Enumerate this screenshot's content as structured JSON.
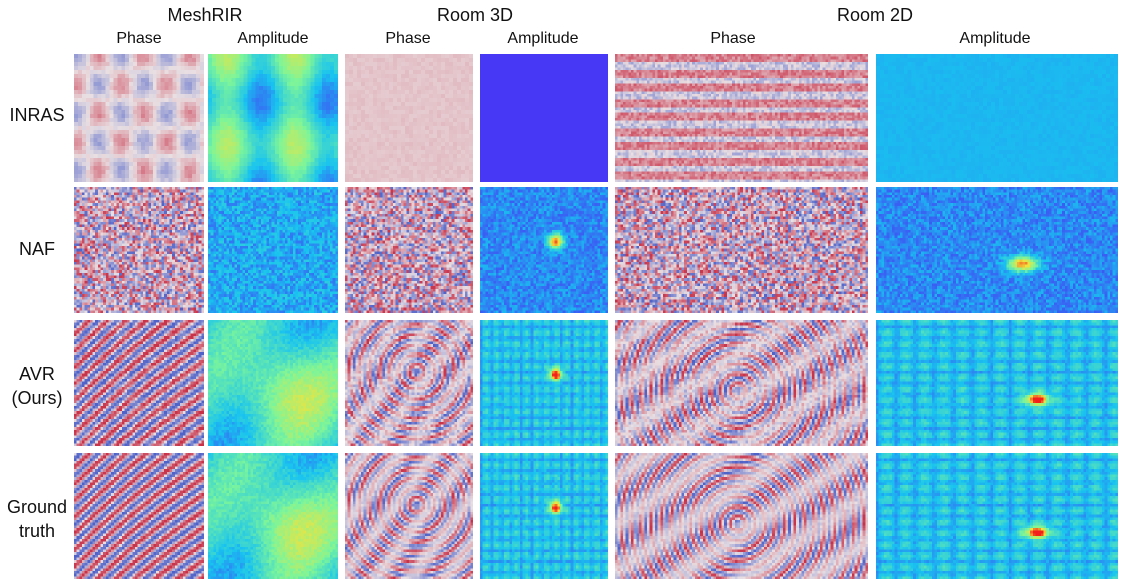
{
  "figure": {
    "groups": [
      {
        "title": "MeshRIR",
        "columns": [
          "Phase",
          "Amplitude"
        ]
      },
      {
        "title": "Room 3D",
        "columns": [
          "Phase",
          "Amplitude"
        ]
      },
      {
        "title": "Room 2D",
        "columns": [
          "Phase",
          "Amplitude"
        ]
      }
    ],
    "rows": [
      {
        "label_lines": [
          "INRAS"
        ]
      },
      {
        "label_lines": [
          "NAF"
        ]
      },
      {
        "label_lines": [
          "AVR",
          "(Ours)"
        ]
      },
      {
        "label_lines": [
          "Ground",
          "truth"
        ]
      }
    ],
    "colormaps": {
      "phase": [
        "#c8334a",
        "#e9dfe2",
        "#4f62c8"
      ],
      "amplitude": [
        "#4b2cf5",
        "#18c3f0",
        "#7cf59a",
        "#f3e33a",
        "#f21f1a"
      ]
    }
  }
}
